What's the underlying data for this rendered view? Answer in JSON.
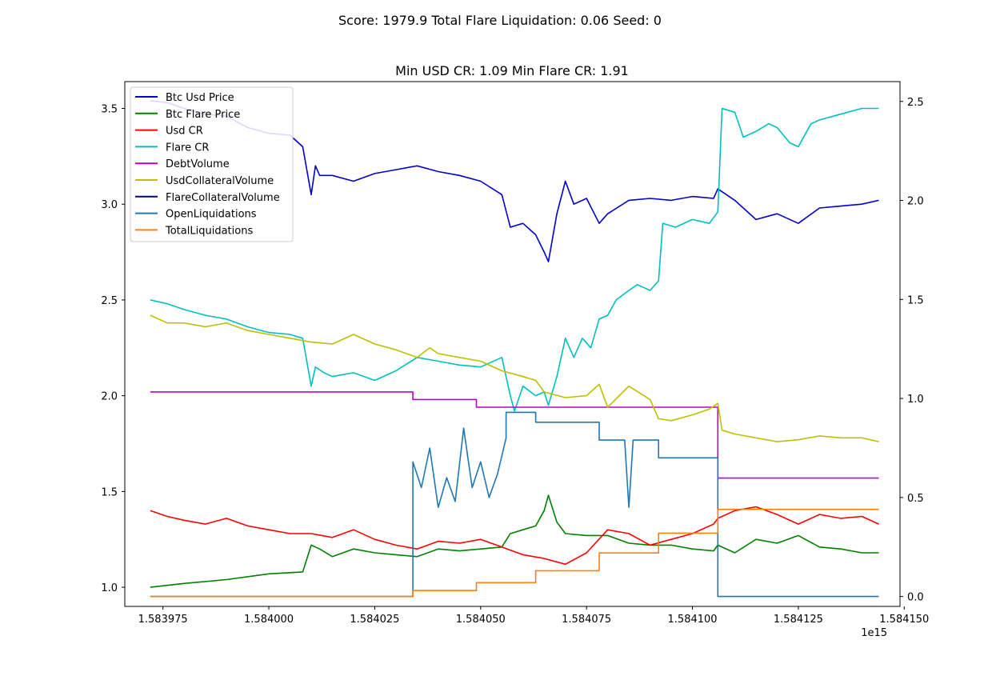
{
  "suptitle": "Score: 1979.9 Total Flare Liquidation: 0.06 Seed: 0",
  "chart_data": {
    "type": "line",
    "title": "Min USD CR: 1.09 Min Flare CR: 1.91",
    "x_offset_label": "1e15",
    "x_ticks": [
      "1.583975",
      "1.584000",
      "1.584025",
      "1.584050",
      "1.584075",
      "1.584100",
      "1.584125",
      "1.584150"
    ],
    "xlim": [
      1.583966,
      1.584149
    ],
    "y_left": {
      "ylim": [
        0.9,
        3.64
      ],
      "ticks": [
        "1.0",
        "1.5",
        "2.0",
        "2.5",
        "3.0",
        "3.5"
      ]
    },
    "y_right": {
      "ylim": [
        -0.05,
        2.6
      ],
      "ticks": [
        "0.0",
        "0.5",
        "1.0",
        "1.5",
        "2.0",
        "2.5"
      ]
    },
    "legend_position": "upper-left",
    "series": [
      {
        "name": "Btc Usd Price",
        "color": "#0000cc",
        "axis": "left",
        "x": [
          1.583972,
          1.583976,
          1.58398,
          1.583985,
          1.58399,
          1.583995,
          1.584,
          1.584005,
          1.584008,
          1.58401,
          1.584011,
          1.584012,
          1.584015,
          1.58402,
          1.584025,
          1.58403,
          1.584035,
          1.58404,
          1.584045,
          1.58405,
          1.584055,
          1.584057,
          1.58406,
          1.584063,
          1.584065,
          1.584066,
          1.584068,
          1.58407,
          1.584072,
          1.584075,
          1.584078,
          1.58408,
          1.584085,
          1.58409,
          1.584095,
          1.5841,
          1.584105,
          1.584106,
          1.58411,
          1.584115,
          1.58412,
          1.584125,
          1.58413,
          1.584135,
          1.58414,
          1.584144
        ],
        "y": [
          3.54,
          3.53,
          3.5,
          3.47,
          3.46,
          3.4,
          3.37,
          3.36,
          3.3,
          3.05,
          3.2,
          3.15,
          3.15,
          3.12,
          3.16,
          3.18,
          3.2,
          3.17,
          3.15,
          3.12,
          3.05,
          2.88,
          2.9,
          2.84,
          2.75,
          2.7,
          2.95,
          3.12,
          3.0,
          3.03,
          2.9,
          2.95,
          3.02,
          3.03,
          3.02,
          3.04,
          3.03,
          3.08,
          3.02,
          2.92,
          2.95,
          2.9,
          2.98,
          2.99,
          3.0,
          3.02
        ]
      },
      {
        "name": "Btc Flare Price",
        "color": "#008000",
        "axis": "left",
        "x": [
          1.583972,
          1.58398,
          1.58399,
          1.584,
          1.584008,
          1.58401,
          1.584012,
          1.584015,
          1.58402,
          1.584025,
          1.58403,
          1.584035,
          1.58404,
          1.584045,
          1.58405,
          1.584055,
          1.584057,
          1.58406,
          1.584063,
          1.584065,
          1.584066,
          1.584068,
          1.58407,
          1.584075,
          1.58408,
          1.584085,
          1.58409,
          1.584095,
          1.5841,
          1.584105,
          1.584106,
          1.58411,
          1.584115,
          1.58412,
          1.584125,
          1.58413,
          1.584135,
          1.58414,
          1.584144
        ],
        "y": [
          1.0,
          1.02,
          1.04,
          1.07,
          1.08,
          1.22,
          1.2,
          1.16,
          1.2,
          1.18,
          1.17,
          1.16,
          1.2,
          1.19,
          1.2,
          1.21,
          1.28,
          1.3,
          1.32,
          1.4,
          1.48,
          1.34,
          1.28,
          1.27,
          1.27,
          1.23,
          1.22,
          1.22,
          1.2,
          1.19,
          1.22,
          1.18,
          1.25,
          1.23,
          1.27,
          1.21,
          1.2,
          1.18,
          1.18
        ]
      },
      {
        "name": "Usd CR",
        "color": "#ff0000",
        "axis": "left",
        "x": [
          1.583972,
          1.583976,
          1.58398,
          1.583985,
          1.58399,
          1.583995,
          1.584,
          1.584005,
          1.58401,
          1.584015,
          1.58402,
          1.584025,
          1.58403,
          1.584035,
          1.58404,
          1.584045,
          1.58405,
          1.584055,
          1.58406,
          1.584065,
          1.58407,
          1.584075,
          1.58408,
          1.584085,
          1.58409,
          1.584095,
          1.5841,
          1.584105,
          1.584106,
          1.584108,
          1.58411,
          1.584115,
          1.58412,
          1.584125,
          1.58413,
          1.584135,
          1.58414,
          1.584144
        ],
        "y": [
          1.4,
          1.37,
          1.35,
          1.33,
          1.36,
          1.32,
          1.3,
          1.28,
          1.28,
          1.26,
          1.3,
          1.25,
          1.22,
          1.2,
          1.24,
          1.23,
          1.25,
          1.21,
          1.17,
          1.15,
          1.12,
          1.18,
          1.3,
          1.28,
          1.22,
          1.25,
          1.28,
          1.33,
          1.36,
          1.38,
          1.4,
          1.42,
          1.38,
          1.33,
          1.38,
          1.36,
          1.37,
          1.33
        ]
      },
      {
        "name": "Flare CR",
        "color": "#00bfbf",
        "axis": "left",
        "x": [
          1.583972,
          1.583976,
          1.58398,
          1.583985,
          1.58399,
          1.583995,
          1.584,
          1.584005,
          1.584008,
          1.58401,
          1.584011,
          1.584013,
          1.584015,
          1.58402,
          1.584025,
          1.58403,
          1.584035,
          1.58404,
          1.584045,
          1.58405,
          1.584055,
          1.584057,
          1.584058,
          1.58406,
          1.584063,
          1.584065,
          1.584066,
          1.584068,
          1.58407,
          1.584072,
          1.584074,
          1.584076,
          1.584078,
          1.58408,
          1.584082,
          1.584085,
          1.584087,
          1.58409,
          1.584092,
          1.584093,
          1.584096,
          1.5841,
          1.584104,
          1.584106,
          1.584107,
          1.58411,
          1.584112,
          1.584115,
          1.584118,
          1.58412,
          1.584123,
          1.584125,
          1.584128,
          1.58413,
          1.584135,
          1.58414,
          1.584144
        ],
        "y": [
          2.5,
          2.48,
          2.45,
          2.42,
          2.4,
          2.36,
          2.33,
          2.32,
          2.3,
          2.05,
          2.15,
          2.12,
          2.1,
          2.12,
          2.08,
          2.13,
          2.2,
          2.18,
          2.16,
          2.15,
          2.2,
          2.0,
          1.92,
          2.05,
          2.0,
          2.02,
          1.95,
          2.1,
          2.3,
          2.2,
          2.3,
          2.25,
          2.4,
          2.42,
          2.5,
          2.55,
          2.58,
          2.55,
          2.6,
          2.9,
          2.88,
          2.92,
          2.9,
          2.96,
          3.5,
          3.48,
          3.35,
          3.38,
          3.42,
          3.4,
          3.32,
          3.3,
          3.42,
          3.44,
          3.47,
          3.5,
          3.5
        ]
      },
      {
        "name": "DebtVolume",
        "color": "#bf00bf",
        "axis": "left",
        "x": [
          1.583972,
          1.584034,
          1.584034,
          1.584049,
          1.584049,
          1.584106,
          1.584106,
          1.584144
        ],
        "y": [
          2.02,
          2.02,
          1.98,
          1.98,
          1.94,
          1.94,
          1.57,
          1.57
        ]
      },
      {
        "name": "UsdCollateralVolume",
        "color": "#bfbf00",
        "axis": "left",
        "x": [
          1.583972,
          1.583976,
          1.58398,
          1.583985,
          1.58399,
          1.583995,
          1.584,
          1.584005,
          1.58401,
          1.584015,
          1.58402,
          1.584025,
          1.58403,
          1.584035,
          1.584038,
          1.58404,
          1.584045,
          1.58405,
          1.584055,
          1.58406,
          1.584063,
          1.584065,
          1.58407,
          1.584075,
          1.584078,
          1.58408,
          1.584085,
          1.58409,
          1.584092,
          1.584095,
          1.5841,
          1.584104,
          1.584106,
          1.584107,
          1.58411,
          1.584115,
          1.58412,
          1.584125,
          1.58413,
          1.584135,
          1.58414,
          1.584144
        ],
        "y": [
          2.42,
          2.38,
          2.38,
          2.36,
          2.38,
          2.34,
          2.32,
          2.3,
          2.28,
          2.27,
          2.32,
          2.27,
          2.24,
          2.2,
          2.25,
          2.22,
          2.2,
          2.18,
          2.13,
          2.1,
          2.08,
          2.02,
          1.99,
          2.0,
          2.06,
          1.94,
          2.05,
          1.98,
          1.88,
          1.87,
          1.9,
          1.93,
          1.96,
          1.82,
          1.8,
          1.78,
          1.76,
          1.77,
          1.79,
          1.78,
          1.78,
          1.76
        ]
      },
      {
        "name": "FlareCollateralVolume",
        "color": "#00008b",
        "axis": "left",
        "x": [],
        "y": []
      },
      {
        "name": "OpenLiquidations",
        "color": "#1f77b4",
        "axis": "right",
        "x": [
          1.583972,
          1.584034,
          1.584034,
          1.584036,
          1.584038,
          1.58404,
          1.584042,
          1.584044,
          1.584046,
          1.584048,
          1.58405,
          1.584052,
          1.584054,
          1.584056,
          1.584056,
          1.584063,
          1.584063,
          1.584078,
          1.584078,
          1.584084,
          1.584085,
          1.584086,
          1.584092,
          1.584092,
          1.584106,
          1.584106,
          1.584144
        ],
        "y": [
          0.0,
          0.0,
          0.68,
          0.55,
          0.75,
          0.45,
          0.6,
          0.48,
          0.85,
          0.55,
          0.68,
          0.5,
          0.62,
          0.8,
          0.93,
          0.93,
          0.88,
          0.88,
          0.79,
          0.79,
          0.45,
          0.79,
          0.79,
          0.7,
          0.7,
          0.0,
          0.0
        ]
      },
      {
        "name": "TotalLiquidations",
        "color": "#ff7f0e",
        "axis": "right",
        "x": [
          1.583972,
          1.584034,
          1.584034,
          1.584049,
          1.584049,
          1.584063,
          1.584063,
          1.584078,
          1.584078,
          1.584092,
          1.584092,
          1.584106,
          1.584106,
          1.584144
        ],
        "y": [
          0.0,
          0.0,
          0.03,
          0.03,
          0.07,
          0.07,
          0.13,
          0.13,
          0.22,
          0.22,
          0.32,
          0.32,
          0.44,
          0.44
        ]
      }
    ]
  }
}
